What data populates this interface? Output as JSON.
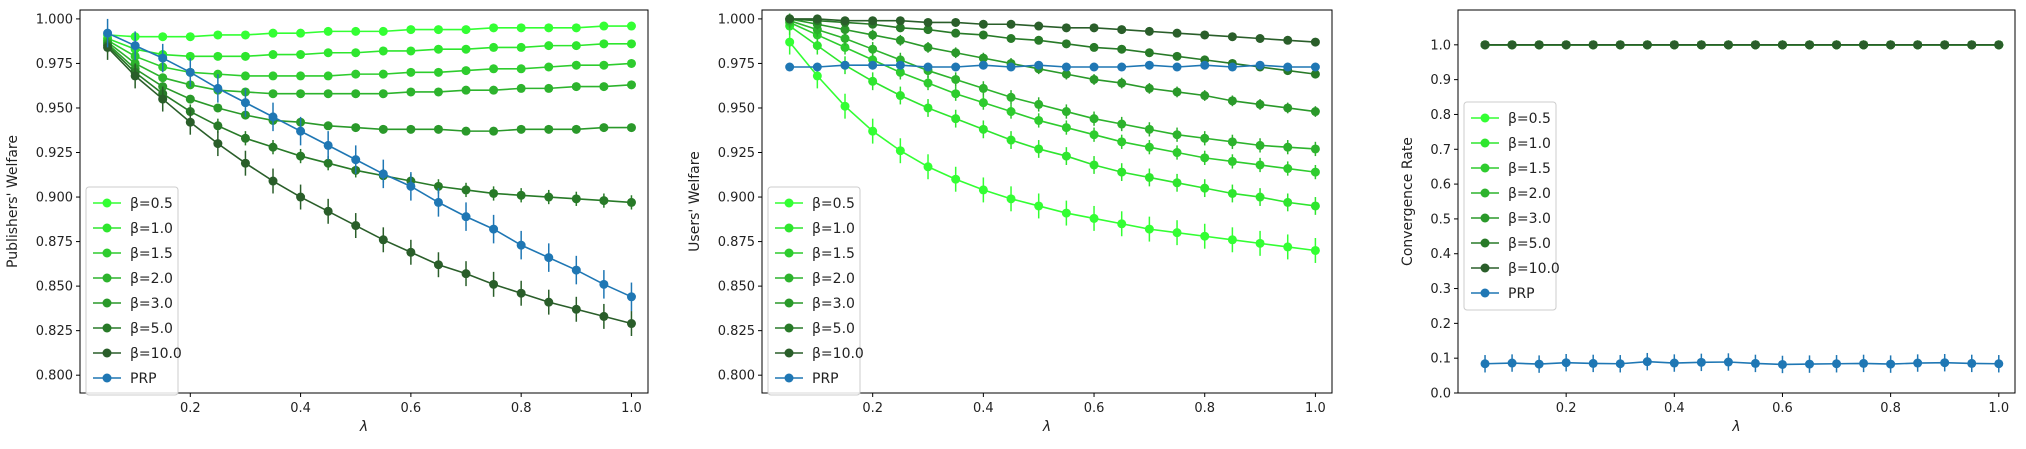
{
  "chart_data": [
    {
      "type": "line",
      "ylabel": "Publishers' Welfare",
      "xlabel": "λ",
      "xlim": [
        0.0,
        1.03
      ],
      "ylim": [
        0.79,
        1.005
      ],
      "xticks": [
        0.2,
        0.4,
        0.6,
        0.8,
        1.0
      ],
      "yticks": [
        0.8,
        0.825,
        0.85,
        0.875,
        0.9,
        0.925,
        0.95,
        0.975,
        1.0
      ],
      "ytick_decimals": 3,
      "legend_position": "lower-left",
      "x": [
        0.05,
        0.1,
        0.15,
        0.2,
        0.25,
        0.3,
        0.35,
        0.4,
        0.45,
        0.5,
        0.55,
        0.6,
        0.65,
        0.7,
        0.75,
        0.8,
        0.85,
        0.9,
        0.95,
        1.0
      ],
      "series": [
        {
          "name": "β=0.5",
          "color": "#33ff33",
          "error": 0.001,
          "values": [
            0.991,
            0.99,
            0.99,
            0.99,
            0.991,
            0.991,
            0.992,
            0.992,
            0.993,
            0.993,
            0.993,
            0.994,
            0.994,
            0.994,
            0.995,
            0.995,
            0.995,
            0.995,
            0.996,
            0.996
          ]
        },
        {
          "name": "β=1.0",
          "color": "#2ee62e",
          "error": 0.001,
          "values": [
            0.989,
            0.983,
            0.98,
            0.979,
            0.979,
            0.979,
            0.98,
            0.98,
            0.981,
            0.981,
            0.982,
            0.982,
            0.983,
            0.983,
            0.984,
            0.984,
            0.985,
            0.985,
            0.986,
            0.986
          ]
        },
        {
          "name": "β=1.5",
          "color": "#2ecc2e",
          "error": 0.0015,
          "values": [
            0.988,
            0.979,
            0.973,
            0.97,
            0.969,
            0.968,
            0.968,
            0.968,
            0.968,
            0.969,
            0.969,
            0.97,
            0.97,
            0.971,
            0.972,
            0.972,
            0.973,
            0.974,
            0.974,
            0.975
          ]
        },
        {
          "name": "β=2.0",
          "color": "#2db32d",
          "error": 0.0015,
          "values": [
            0.987,
            0.975,
            0.967,
            0.963,
            0.96,
            0.959,
            0.958,
            0.958,
            0.958,
            0.958,
            0.958,
            0.959,
            0.959,
            0.96,
            0.96,
            0.961,
            0.961,
            0.962,
            0.962,
            0.963
          ]
        },
        {
          "name": "β=3.0",
          "color": "#2a992a",
          "error": 0.002,
          "values": [
            0.986,
            0.972,
            0.962,
            0.955,
            0.95,
            0.946,
            0.943,
            0.942,
            0.94,
            0.939,
            0.938,
            0.938,
            0.938,
            0.937,
            0.937,
            0.938,
            0.938,
            0.938,
            0.939,
            0.939
          ]
        },
        {
          "name": "β=5.0",
          "color": "#287a28",
          "error": 0.004,
          "values": [
            0.985,
            0.97,
            0.958,
            0.948,
            0.94,
            0.933,
            0.928,
            0.923,
            0.919,
            0.915,
            0.912,
            0.909,
            0.906,
            0.904,
            0.902,
            0.901,
            0.9,
            0.899,
            0.898,
            0.897
          ]
        },
        {
          "name": "β=10.0",
          "color": "#2a5e2a",
          "error": 0.007,
          "values": [
            0.984,
            0.968,
            0.955,
            0.942,
            0.93,
            0.919,
            0.909,
            0.9,
            0.892,
            0.884,
            0.876,
            0.869,
            0.862,
            0.857,
            0.851,
            0.846,
            0.841,
            0.837,
            0.833,
            0.829
          ]
        },
        {
          "name": "PRP",
          "color": "#1f77b4",
          "error": 0.008,
          "values": [
            0.992,
            0.985,
            0.978,
            0.97,
            0.961,
            0.953,
            0.945,
            0.937,
            0.929,
            0.921,
            0.913,
            0.906,
            0.897,
            0.889,
            0.882,
            0.873,
            0.866,
            0.859,
            0.851,
            0.844
          ]
        }
      ]
    },
    {
      "type": "line",
      "ylabel": "Users' Welfare",
      "xlabel": "λ",
      "xlim": [
        0.0,
        1.03
      ],
      "ylim": [
        0.79,
        1.005
      ],
      "xticks": [
        0.2,
        0.4,
        0.6,
        0.8,
        1.0
      ],
      "yticks": [
        0.8,
        0.825,
        0.85,
        0.875,
        0.9,
        0.925,
        0.95,
        0.975,
        1.0
      ],
      "ytick_decimals": 3,
      "legend_position": "lower-left",
      "x": [
        0.05,
        0.1,
        0.15,
        0.2,
        0.25,
        0.3,
        0.35,
        0.4,
        0.45,
        0.5,
        0.55,
        0.6,
        0.65,
        0.7,
        0.75,
        0.8,
        0.85,
        0.9,
        0.95,
        1.0
      ],
      "series": [
        {
          "name": "β=0.5",
          "color": "#33ff33",
          "error": 0.007,
          "values": [
            0.987,
            0.968,
            0.951,
            0.937,
            0.926,
            0.917,
            0.91,
            0.904,
            0.899,
            0.895,
            0.891,
            0.888,
            0.885,
            0.882,
            0.88,
            0.878,
            0.876,
            0.874,
            0.872,
            0.87
          ]
        },
        {
          "name": "β=1.0",
          "color": "#2ee62e",
          "error": 0.005,
          "values": [
            0.996,
            0.985,
            0.974,
            0.965,
            0.957,
            0.95,
            0.944,
            0.938,
            0.932,
            0.927,
            0.923,
            0.918,
            0.914,
            0.911,
            0.908,
            0.905,
            0.902,
            0.9,
            0.897,
            0.895
          ]
        },
        {
          "name": "β=1.5",
          "color": "#2ecc2e",
          "error": 0.004,
          "values": [
            0.998,
            0.991,
            0.984,
            0.977,
            0.97,
            0.964,
            0.958,
            0.953,
            0.948,
            0.943,
            0.939,
            0.935,
            0.931,
            0.928,
            0.925,
            0.922,
            0.92,
            0.918,
            0.916,
            0.914
          ]
        },
        {
          "name": "β=2.0",
          "color": "#2db32d",
          "error": 0.004,
          "values": [
            0.999,
            0.994,
            0.989,
            0.983,
            0.977,
            0.971,
            0.966,
            0.961,
            0.956,
            0.952,
            0.948,
            0.944,
            0.941,
            0.938,
            0.935,
            0.933,
            0.931,
            0.929,
            0.928,
            0.927
          ]
        },
        {
          "name": "β=3.0",
          "color": "#2a992a",
          "error": 0.003,
          "values": [
            1.0,
            0.997,
            0.994,
            0.991,
            0.988,
            0.984,
            0.981,
            0.978,
            0.975,
            0.972,
            0.969,
            0.966,
            0.964,
            0.961,
            0.959,
            0.957,
            0.954,
            0.952,
            0.95,
            0.948
          ]
        },
        {
          "name": "β=5.0",
          "color": "#287a28",
          "error": 0.002,
          "values": [
            1.0,
            0.999,
            0.998,
            0.997,
            0.995,
            0.994,
            0.992,
            0.991,
            0.989,
            0.988,
            0.986,
            0.984,
            0.983,
            0.981,
            0.979,
            0.977,
            0.975,
            0.973,
            0.971,
            0.969
          ]
        },
        {
          "name": "β=10.0",
          "color": "#2a5e2a",
          "error": 0.001,
          "values": [
            1.0,
            1.0,
            0.999,
            0.999,
            0.999,
            0.998,
            0.998,
            0.997,
            0.997,
            0.996,
            0.995,
            0.995,
            0.994,
            0.993,
            0.992,
            0.991,
            0.99,
            0.989,
            0.988,
            0.987
          ]
        },
        {
          "name": "PRP",
          "color": "#1f77b4",
          "error": 0.001,
          "values": [
            0.973,
            0.973,
            0.974,
            0.974,
            0.974,
            0.973,
            0.973,
            0.974,
            0.973,
            0.974,
            0.973,
            0.973,
            0.973,
            0.974,
            0.973,
            0.974,
            0.973,
            0.974,
            0.973,
            0.973
          ]
        }
      ]
    },
    {
      "type": "line",
      "ylabel": "Convergence Rate",
      "xlabel": "λ",
      "xlim": [
        0.0,
        1.03
      ],
      "ylim": [
        0.0,
        1.1
      ],
      "xticks": [
        0.2,
        0.4,
        0.6,
        0.8,
        1.0
      ],
      "yticks": [
        0.0,
        0.1,
        0.2,
        0.3,
        0.4,
        0.5,
        0.6,
        0.7,
        0.8,
        0.9,
        1.0
      ],
      "ytick_decimals": 1,
      "legend_position": "center-left",
      "x": [
        0.05,
        0.1,
        0.15,
        0.2,
        0.25,
        0.3,
        0.35,
        0.4,
        0.45,
        0.5,
        0.55,
        0.6,
        0.65,
        0.7,
        0.75,
        0.8,
        0.85,
        0.9,
        0.95,
        1.0
      ],
      "series": [
        {
          "name": "β=0.5",
          "color": "#33ff33",
          "error": 0,
          "values": [
            1.0,
            1.0,
            1.0,
            1.0,
            1.0,
            1.0,
            1.0,
            1.0,
            1.0,
            1.0,
            1.0,
            1.0,
            1.0,
            1.0,
            1.0,
            1.0,
            1.0,
            1.0,
            1.0,
            1.0
          ]
        },
        {
          "name": "β=1.0",
          "color": "#2ee62e",
          "error": 0,
          "values": [
            1.0,
            1.0,
            1.0,
            1.0,
            1.0,
            1.0,
            1.0,
            1.0,
            1.0,
            1.0,
            1.0,
            1.0,
            1.0,
            1.0,
            1.0,
            1.0,
            1.0,
            1.0,
            1.0,
            1.0
          ]
        },
        {
          "name": "β=1.5",
          "color": "#2ecc2e",
          "error": 0,
          "values": [
            1.0,
            1.0,
            1.0,
            1.0,
            1.0,
            1.0,
            1.0,
            1.0,
            1.0,
            1.0,
            1.0,
            1.0,
            1.0,
            1.0,
            1.0,
            1.0,
            1.0,
            1.0,
            1.0,
            1.0
          ]
        },
        {
          "name": "β=2.0",
          "color": "#2db32d",
          "error": 0,
          "values": [
            1.0,
            1.0,
            1.0,
            1.0,
            1.0,
            1.0,
            1.0,
            1.0,
            1.0,
            1.0,
            1.0,
            1.0,
            1.0,
            1.0,
            1.0,
            1.0,
            1.0,
            1.0,
            1.0,
            1.0
          ]
        },
        {
          "name": "β=3.0",
          "color": "#2a992a",
          "error": 0,
          "values": [
            1.0,
            1.0,
            1.0,
            1.0,
            1.0,
            1.0,
            1.0,
            1.0,
            1.0,
            1.0,
            1.0,
            1.0,
            1.0,
            1.0,
            1.0,
            1.0,
            1.0,
            1.0,
            1.0,
            1.0
          ]
        },
        {
          "name": "β=5.0",
          "color": "#287a28",
          "error": 0,
          "values": [
            1.0,
            1.0,
            1.0,
            1.0,
            1.0,
            1.0,
            1.0,
            1.0,
            1.0,
            1.0,
            1.0,
            1.0,
            1.0,
            1.0,
            1.0,
            1.0,
            1.0,
            1.0,
            1.0,
            1.0
          ]
        },
        {
          "name": "β=10.0",
          "color": "#2a5e2a",
          "error": 0,
          "values": [
            1.0,
            1.0,
            1.0,
            1.0,
            1.0,
            1.0,
            1.0,
            1.0,
            1.0,
            1.0,
            1.0,
            1.0,
            1.0,
            1.0,
            1.0,
            1.0,
            1.0,
            1.0,
            1.0,
            1.0
          ]
        },
        {
          "name": "PRP",
          "color": "#1f77b4",
          "error": 0.025,
          "values": [
            0.084,
            0.086,
            0.083,
            0.087,
            0.085,
            0.084,
            0.09,
            0.086,
            0.088,
            0.089,
            0.085,
            0.082,
            0.083,
            0.084,
            0.085,
            0.083,
            0.086,
            0.087,
            0.085,
            0.084
          ]
        }
      ]
    }
  ]
}
